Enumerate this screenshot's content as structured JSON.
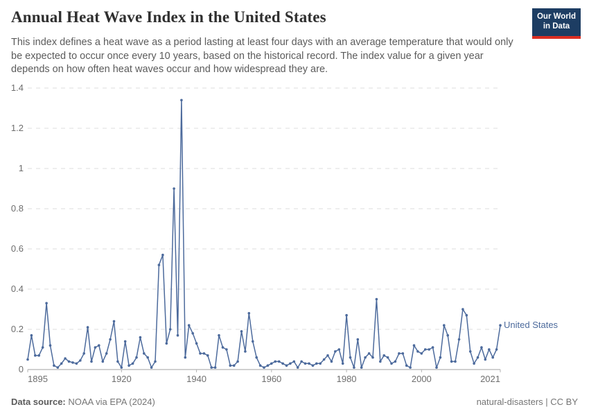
{
  "header": {
    "title": "Annual Heat Wave Index in the United States",
    "subtitle": "This index defines a heat wave as a period lasting at least four days with an average temperature that would only be expected to occur once every 10 years, based on the historical record. The index value for a given year depends on how often heat waves occur and how widespread they are.",
    "logo": {
      "line1": "Our World",
      "line2": "in Data",
      "bg_color": "#1d3d63",
      "accent_color": "#dc2e22",
      "text_color": "#ffffff"
    }
  },
  "chart_data": {
    "type": "line",
    "title": "Annual Heat Wave Index in the United States",
    "xlabel": "",
    "ylabel": "",
    "xlim": [
      1895,
      2021
    ],
    "ylim": [
      0,
      1.4
    ],
    "xticks": [
      1895,
      1920,
      1940,
      1960,
      1980,
      2000,
      2021
    ],
    "yticks": [
      0,
      0.2,
      0.4,
      0.6,
      0.8,
      1,
      1.2,
      1.4
    ],
    "grid": "horizontal-dashed",
    "legend_position": "end-of-line",
    "end_label": "United States",
    "line_color": "#4C6A9C",
    "grid_color": "#dedede",
    "axis_color": "#a1a1a1",
    "tick_label_color": "#6e6e6e",
    "series": [
      {
        "name": "United States",
        "color": "#4C6A9C",
        "x": [
          1895,
          1896,
          1897,
          1898,
          1899,
          1900,
          1901,
          1902,
          1903,
          1904,
          1905,
          1906,
          1907,
          1908,
          1909,
          1910,
          1911,
          1912,
          1913,
          1914,
          1915,
          1916,
          1917,
          1918,
          1919,
          1920,
          1921,
          1922,
          1923,
          1924,
          1925,
          1926,
          1927,
          1928,
          1929,
          1930,
          1931,
          1932,
          1933,
          1934,
          1935,
          1936,
          1937,
          1938,
          1939,
          1940,
          1941,
          1942,
          1943,
          1944,
          1945,
          1946,
          1947,
          1948,
          1949,
          1950,
          1951,
          1952,
          1953,
          1954,
          1955,
          1956,
          1957,
          1958,
          1959,
          1960,
          1961,
          1962,
          1963,
          1964,
          1965,
          1966,
          1967,
          1968,
          1969,
          1970,
          1971,
          1972,
          1973,
          1974,
          1975,
          1976,
          1977,
          1978,
          1979,
          1980,
          1981,
          1982,
          1983,
          1984,
          1985,
          1986,
          1987,
          1988,
          1989,
          1990,
          1991,
          1992,
          1993,
          1994,
          1995,
          1996,
          1997,
          1998,
          1999,
          2000,
          2001,
          2002,
          2003,
          2004,
          2005,
          2006,
          2007,
          2008,
          2009,
          2010,
          2011,
          2012,
          2013,
          2014,
          2015,
          2016,
          2017,
          2018,
          2019,
          2020,
          2021
        ],
        "values": [
          0.05,
          0.17,
          0.07,
          0.07,
          0.11,
          0.33,
          0.12,
          0.02,
          0.01,
          0.03,
          0.055,
          0.04,
          0.035,
          0.03,
          0.045,
          0.08,
          0.21,
          0.04,
          0.11,
          0.12,
          0.04,
          0.08,
          0.15,
          0.24,
          0.04,
          0.01,
          0.14,
          0.02,
          0.03,
          0.06,
          0.16,
          0.08,
          0.06,
          0.01,
          0.04,
          0.52,
          0.57,
          0.13,
          0.2,
          0.9,
          0.17,
          1.34,
          0.06,
          0.22,
          0.18,
          0.13,
          0.08,
          0.08,
          0.07,
          0.01,
          0.01,
          0.17,
          0.11,
          0.1,
          0.02,
          0.02,
          0.04,
          0.19,
          0.09,
          0.28,
          0.14,
          0.06,
          0.02,
          0.01,
          0.02,
          0.03,
          0.04,
          0.04,
          0.03,
          0.02,
          0.03,
          0.04,
          0.01,
          0.04,
          0.03,
          0.03,
          0.02,
          0.03,
          0.03,
          0.05,
          0.07,
          0.04,
          0.09,
          0.1,
          0.03,
          0.27,
          0.06,
          0.01,
          0.15,
          0.01,
          0.06,
          0.08,
          0.06,
          0.35,
          0.04,
          0.07,
          0.06,
          0.03,
          0.04,
          0.08,
          0.08,
          0.02,
          0.01,
          0.12,
          0.09,
          0.08,
          0.1,
          0.1,
          0.11,
          0.01,
          0.06,
          0.22,
          0.17,
          0.04,
          0.04,
          0.15,
          0.3,
          0.27,
          0.09,
          0.03,
          0.06,
          0.11,
          0.05,
          0.1,
          0.06,
          0.1,
          0.22
        ]
      }
    ]
  },
  "footer": {
    "source_label": "Data source:",
    "source_value": " NOAA via EPA (2024)",
    "right_text": "natural-disasters | CC BY"
  }
}
